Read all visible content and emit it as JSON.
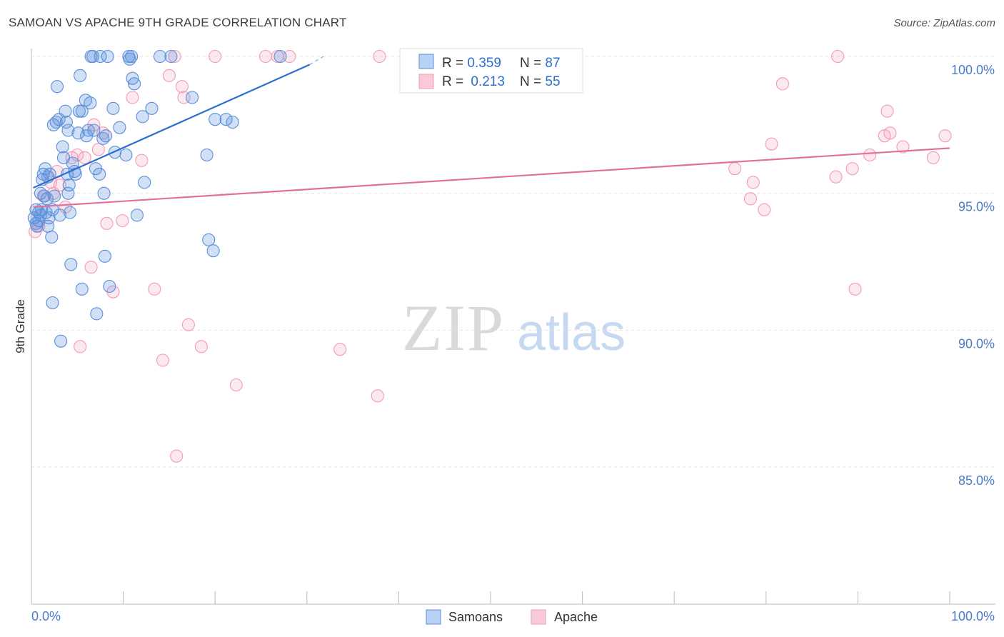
{
  "title": "SAMOAN VS APACHE 9TH GRADE CORRELATION CHART",
  "source": "Source: ZipAtlas.com",
  "watermark": {
    "zip": "ZIP",
    "atlas": "atlas"
  },
  "legend": [
    {
      "r_label": "R = ",
      "r_value": "0.359",
      "n_label": "N = ",
      "n_value": "87"
    },
    {
      "r_label": "R = ",
      "r_value": "0.213",
      "n_label": "N = ",
      "n_value": "55"
    }
  ],
  "bottom_legend": [
    "Samoans",
    "Apache"
  ],
  "chart_data": {
    "type": "scatter",
    "title": "SAMOAN VS APACHE 9TH GRADE CORRELATION CHART",
    "xlabel": "",
    "ylabel": "9th Grade",
    "xlim": [
      0,
      100
    ],
    "ylim": [
      80.5,
      100.8
    ],
    "x_tick_labels": [
      "0.0%",
      "100.0%"
    ],
    "y_ticks": [
      85,
      90,
      95,
      100
    ],
    "y_tick_labels": [
      "85.0%",
      "90.0%",
      "95.0%",
      "100.0%"
    ],
    "grid": true,
    "legend_position": "top-center",
    "colors": {
      "Samoans": "#5b8fdb",
      "Apache": "#f29bb5",
      "Samoans_line": "#2a6fcf",
      "Apache_line": "#e0709a",
      "tick_text": "#4a7cc9"
    },
    "series": [
      {
        "name": "Samoans",
        "r": 0.359,
        "n": 87,
        "trend": {
          "x": [
            0.2,
            30.3
          ],
          "y": [
            95.2,
            99.7
          ]
        },
        "trend_dashed_to": {
          "x": 31.8,
          "y": 100.0
        },
        "points": [
          [
            0.3,
            94.1
          ],
          [
            0.5,
            93.9
          ],
          [
            0.5,
            94.4
          ],
          [
            0.6,
            93.8
          ],
          [
            0.8,
            94.0
          ],
          [
            1.0,
            94.2
          ],
          [
            1.1,
            94.4
          ],
          [
            1.2,
            95.5
          ],
          [
            1.3,
            95.7
          ],
          [
            1.4,
            94.9
          ],
          [
            1.5,
            95.9
          ],
          [
            1.6,
            94.3
          ],
          [
            1.7,
            94.8
          ],
          [
            1.8,
            95.6
          ],
          [
            1.9,
            94.1
          ],
          [
            2.0,
            95.7
          ],
          [
            2.2,
            93.4
          ],
          [
            2.3,
            94.4
          ],
          [
            2.4,
            97.5
          ],
          [
            2.5,
            94.9
          ],
          [
            2.7,
            97.6
          ],
          [
            2.8,
            98.9
          ],
          [
            3.0,
            97.7
          ],
          [
            3.1,
            94.2
          ],
          [
            3.2,
            89.6
          ],
          [
            3.4,
            96.7
          ],
          [
            3.5,
            96.3
          ],
          [
            3.7,
            98.0
          ],
          [
            3.8,
            97.6
          ],
          [
            3.9,
            95.7
          ],
          [
            4.0,
            97.3
          ],
          [
            4.0,
            95.0
          ],
          [
            4.1,
            95.3
          ],
          [
            4.2,
            94.3
          ],
          [
            4.3,
            92.4
          ],
          [
            4.5,
            96.1
          ],
          [
            4.7,
            95.8
          ],
          [
            4.8,
            95.7
          ],
          [
            5.1,
            97.2
          ],
          [
            5.2,
            98.0
          ],
          [
            5.3,
            99.3
          ],
          [
            5.5,
            98.0
          ],
          [
            5.5,
            91.5
          ],
          [
            5.9,
            98.4
          ],
          [
            6.0,
            97.1
          ],
          [
            6.2,
            97.3
          ],
          [
            6.4,
            98.3
          ],
          [
            6.5,
            100.0
          ],
          [
            6.7,
            100.0
          ],
          [
            6.8,
            97.3
          ],
          [
            7.0,
            95.9
          ],
          [
            7.1,
            90.6
          ],
          [
            7.4,
            95.7
          ],
          [
            7.5,
            100.0
          ],
          [
            7.8,
            97.0
          ],
          [
            7.9,
            95.0
          ],
          [
            8.0,
            92.7
          ],
          [
            8.1,
            97.1
          ],
          [
            8.3,
            100.0
          ],
          [
            8.5,
            91.6
          ],
          [
            8.9,
            98.1
          ],
          [
            9.1,
            96.5
          ],
          [
            9.6,
            97.4
          ],
          [
            10.3,
            96.4
          ],
          [
            10.6,
            100.0
          ],
          [
            10.7,
            99.9
          ],
          [
            10.9,
            100.0
          ],
          [
            11.0,
            99.2
          ],
          [
            11.2,
            99.0
          ],
          [
            11.5,
            94.2
          ],
          [
            12.1,
            97.8
          ],
          [
            12.3,
            95.4
          ],
          [
            13.1,
            98.1
          ],
          [
            14.0,
            100.0
          ],
          [
            15.2,
            100.0
          ],
          [
            17.5,
            98.5
          ],
          [
            19.1,
            96.4
          ],
          [
            19.3,
            93.3
          ],
          [
            19.8,
            92.9
          ],
          [
            20.0,
            97.7
          ],
          [
            21.2,
            97.7
          ],
          [
            21.9,
            97.6
          ],
          [
            27.1,
            100.0
          ],
          [
            2.3,
            91.0
          ],
          [
            1.0,
            95.0
          ],
          [
            0.8,
            94.3
          ],
          [
            1.8,
            93.8
          ]
        ]
      },
      {
        "name": "Apache",
        "r": 0.213,
        "n": 55,
        "trend": {
          "x": [
            0.2,
            100.0
          ],
          "y": [
            94.5,
            96.65
          ]
        },
        "points": [
          [
            0.4,
            93.6
          ],
          [
            0.8,
            93.8
          ],
          [
            1.3,
            94.9
          ],
          [
            2.1,
            95.4
          ],
          [
            2.4,
            95.0
          ],
          [
            2.8,
            95.8
          ],
          [
            3.1,
            95.3
          ],
          [
            3.7,
            94.5
          ],
          [
            4.4,
            96.3
          ],
          [
            5.0,
            96.4
          ],
          [
            5.3,
            89.4
          ],
          [
            5.8,
            96.3
          ],
          [
            6.5,
            92.3
          ],
          [
            6.8,
            97.5
          ],
          [
            7.3,
            96.6
          ],
          [
            7.8,
            97.2
          ],
          [
            8.2,
            93.9
          ],
          [
            8.9,
            91.4
          ],
          [
            9.9,
            94.0
          ],
          [
            11.0,
            98.5
          ],
          [
            12.0,
            96.2
          ],
          [
            13.4,
            91.5
          ],
          [
            14.3,
            88.9
          ],
          [
            15.0,
            99.3
          ],
          [
            15.6,
            100.0
          ],
          [
            15.8,
            85.4
          ],
          [
            16.4,
            98.9
          ],
          [
            16.6,
            98.5
          ],
          [
            17.1,
            90.2
          ],
          [
            18.5,
            89.4
          ],
          [
            20.0,
            100.0
          ],
          [
            22.3,
            88.0
          ],
          [
            25.5,
            100.0
          ],
          [
            26.8,
            100.0
          ],
          [
            28.1,
            100.0
          ],
          [
            33.6,
            89.3
          ],
          [
            37.7,
            87.6
          ],
          [
            37.9,
            100.0
          ],
          [
            76.6,
            95.9
          ],
          [
            78.3,
            94.8
          ],
          [
            78.6,
            95.4
          ],
          [
            79.8,
            94.4
          ],
          [
            80.6,
            96.8
          ],
          [
            81.8,
            99.0
          ],
          [
            87.6,
            95.6
          ],
          [
            87.8,
            100.0
          ],
          [
            89.4,
            95.9
          ],
          [
            89.7,
            91.5
          ],
          [
            91.3,
            96.4
          ],
          [
            92.9,
            97.1
          ],
          [
            93.2,
            98.0
          ],
          [
            93.5,
            97.2
          ],
          [
            94.9,
            96.7
          ],
          [
            98.2,
            96.3
          ],
          [
            99.5,
            97.1
          ]
        ]
      }
    ]
  }
}
